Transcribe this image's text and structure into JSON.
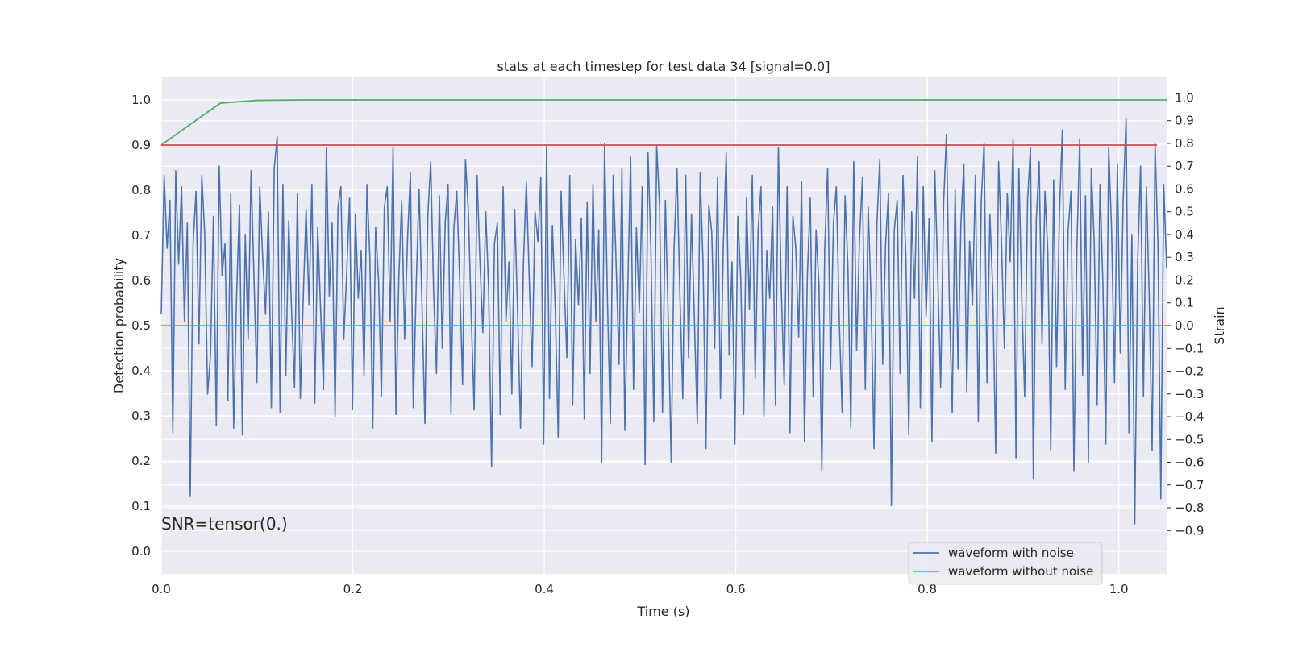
{
  "chart_data": {
    "type": "line",
    "title": "stats at each timestep for test data 34 [signal=0.0]",
    "xlabel": "Time (s)",
    "ylabel": "Detection probability",
    "y2label": "Strain",
    "xlim": [
      0.0,
      1.05
    ],
    "ylim": [
      -0.05,
      1.05
    ],
    "y2lim": [
      -1.09,
      1.09
    ],
    "xticks": [
      0.0,
      0.2,
      0.4,
      0.6,
      0.8,
      1.0
    ],
    "xtick_labels": [
      "0.0",
      "0.2",
      "0.4",
      "0.6",
      "0.8",
      "1.0"
    ],
    "yticks": [
      0.0,
      0.1,
      0.2,
      0.3,
      0.4,
      0.5,
      0.6,
      0.7,
      0.8,
      0.9,
      1.0
    ],
    "ytick_labels": [
      "0.0",
      "0.1",
      "0.2",
      "0.3",
      "0.4",
      "0.5",
      "0.6",
      "0.7",
      "0.8",
      "0.9",
      "1.0"
    ],
    "y2ticks": [
      -0.9,
      -0.8,
      -0.7,
      -0.6,
      -0.5,
      -0.4,
      -0.3,
      -0.2,
      -0.1,
      0.0,
      0.1,
      0.2,
      0.3,
      0.4,
      0.5,
      0.6,
      0.7,
      0.8,
      0.9,
      1.0
    ],
    "y2tick_labels": [
      "−0.9",
      "−0.8",
      "−0.7",
      "−0.6",
      "−0.5",
      "−0.4",
      "−0.3",
      "−0.2",
      "−0.1",
      "0.0",
      "0.1",
      "0.2",
      "0.3",
      "0.4",
      "0.5",
      "0.6",
      "0.7",
      "0.8",
      "0.9",
      "1.0"
    ],
    "grid": true,
    "legend_position": "lower-right",
    "annotation": "SNR=tensor(0.)",
    "series": [
      {
        "name": "waveform with noise",
        "axis": "right",
        "color": "#4c72b0",
        "t_start": 0.0,
        "t_end": 1.05,
        "note_values": "noise sampled ~ every 0.002 s; representative estimated values",
        "values": [
          0.05,
          0.66,
          0.34,
          0.55,
          -0.47,
          0.68,
          0.27,
          0.61,
          0.02,
          0.45,
          -0.75,
          0.36,
          0.59,
          -0.08,
          0.66,
          0.4,
          -0.3,
          -0.13,
          0.48,
          -0.44,
          0.7,
          0.22,
          0.36,
          -0.33,
          0.58,
          -0.45,
          0.13,
          0.53,
          -0.48,
          0.4,
          -0.06,
          0.68,
          0.21,
          -0.25,
          0.61,
          0.3,
          0.05,
          0.5,
          -0.36,
          0.69,
          0.83,
          -0.38,
          0.62,
          -0.22,
          0.46,
          0.06,
          -0.27,
          0.58,
          -0.32,
          0.12,
          0.51,
          0.09,
          0.62,
          -0.34,
          0.43,
          0.07,
          -0.28,
          0.78,
          0.13,
          0.45,
          -0.4,
          0.52,
          0.61,
          -0.06,
          0.23,
          0.56,
          -0.37,
          0.49,
          0.12,
          0.33,
          -0.22,
          0.62,
          0.3,
          -0.45,
          0.43,
          0.2,
          -0.31,
          0.52,
          0.61,
          0.02,
          0.78,
          -0.39,
          0.21,
          0.55,
          -0.06,
          0.38,
          0.67,
          -0.36,
          0.18,
          0.6,
          0.09,
          -0.43,
          0.48,
          0.72,
          0.15,
          -0.21,
          0.57,
          -0.1,
          0.45,
          0.62,
          -0.39,
          0.43,
          0.59,
          0.2,
          -0.26,
          0.73,
          0.5,
          0.04,
          -0.37,
          0.66,
          0.28,
          -0.03,
          0.5,
          0.16,
          -0.62,
          0.36,
          0.45,
          -0.39,
          0.61,
          0.02,
          0.28,
          -0.3,
          0.51,
          0.05,
          -0.45,
          0.27,
          0.63,
          0.21,
          -0.18,
          0.5,
          0.37,
          0.65,
          -0.52,
          0.79,
          -0.32,
          0.44,
          0.07,
          -0.49,
          0.59,
          0.21,
          -0.14,
          0.66,
          -0.35,
          0.38,
          0.09,
          0.47,
          -0.41,
          0.54,
          -0.21,
          0.62,
          0.02,
          0.42,
          -0.6,
          0.8,
          0.11,
          -0.43,
          0.66,
          0.27,
          -0.17,
          0.69,
          -0.46,
          0.15,
          0.74,
          -0.28,
          0.43,
          0.06,
          0.61,
          -0.61,
          0.76,
          0.34,
          -0.42,
          0.79,
          0.52,
          -0.38,
          0.55,
          0.02,
          -0.6,
          0.34,
          0.69,
          0.14,
          -0.32,
          0.66,
          -0.14,
          0.49,
          0.03,
          -0.43,
          0.67,
          0.27,
          -0.54,
          0.53,
          0.41,
          -0.1,
          0.65,
          -0.32,
          0.36,
          0.76,
          -0.13,
          0.28,
          -0.52,
          0.48,
          0.21,
          -0.39,
          0.56,
          0.07,
          0.66,
          -0.23,
          0.42,
          0.61,
          -0.4,
          0.33,
          0.12,
          0.52,
          -0.35,
          0.78,
          0.16,
          -0.26,
          0.61,
          -0.47,
          0.48,
          0.34,
          -0.05,
          0.63,
          -0.51,
          0.22,
          0.56,
          -0.31,
          0.42,
          0.18,
          -0.64,
          0.34,
          0.69,
          -0.19,
          0.45,
          0.61,
          0.03,
          -0.38,
          0.57,
          0.26,
          -0.45,
          0.72,
          -0.11,
          0.38,
          0.65,
          -0.28,
          0.52,
          0.11,
          -0.54,
          0.44,
          0.73,
          -0.17,
          0.36,
          0.58,
          -0.79,
          0.42,
          0.55,
          -0.21,
          0.66,
          0.3,
          -0.48,
          0.5,
          0.12,
          0.74,
          -0.36,
          0.61,
          0.04,
          0.47,
          -0.51,
          0.68,
          0.22,
          -0.27,
          0.53,
          0.84,
          0.11,
          -0.38,
          0.6,
          -0.19,
          0.45,
          0.71,
          -0.29,
          0.37,
          0.09,
          0.66,
          -0.42,
          0.54,
          0.8,
          -0.25,
          0.49,
          0.15,
          -0.56,
          0.72,
          0.37,
          -0.1,
          0.58,
          0.28,
          0.82,
          -0.58,
          0.69,
          0.12,
          -0.31,
          0.55,
          0.78,
          -0.67,
          0.46,
          0.72,
          -0.08,
          0.59,
          0.32,
          -0.55,
          0.64,
          -0.18,
          0.49,
          0.86,
          -0.28,
          0.42,
          0.59,
          -0.64,
          0.33,
          0.82,
          -0.22,
          0.57,
          -0.6,
          0.69,
          0.37,
          -0.35,
          0.62,
          0.18,
          -0.52,
          0.78,
          0.42,
          -0.25,
          0.71,
          -0.12,
          0.55,
          0.91,
          -0.47,
          0.4,
          -0.87,
          0.28,
          0.7,
          -0.31,
          0.61,
          0.12,
          -0.55,
          0.8,
          0.36,
          -0.76,
          0.62,
          0.25
        ]
      },
      {
        "name": "waveform without noise",
        "axis": "right",
        "color": "#dd8452",
        "x": [
          0.0,
          1.05
        ],
        "values": [
          0.0,
          0.0
        ]
      },
      {
        "axis": "left",
        "color": "#55a868",
        "x": [
          0.0,
          0.031,
          0.062,
          0.1,
          0.15,
          1.05
        ],
        "values": [
          0.9,
          0.947,
          0.993,
          0.999,
          1.0,
          1.0
        ]
      },
      {
        "axis": "left",
        "color": "#c44e52",
        "x": [
          0.0,
          1.04
        ],
        "values": [
          0.9,
          0.9
        ]
      }
    ]
  }
}
